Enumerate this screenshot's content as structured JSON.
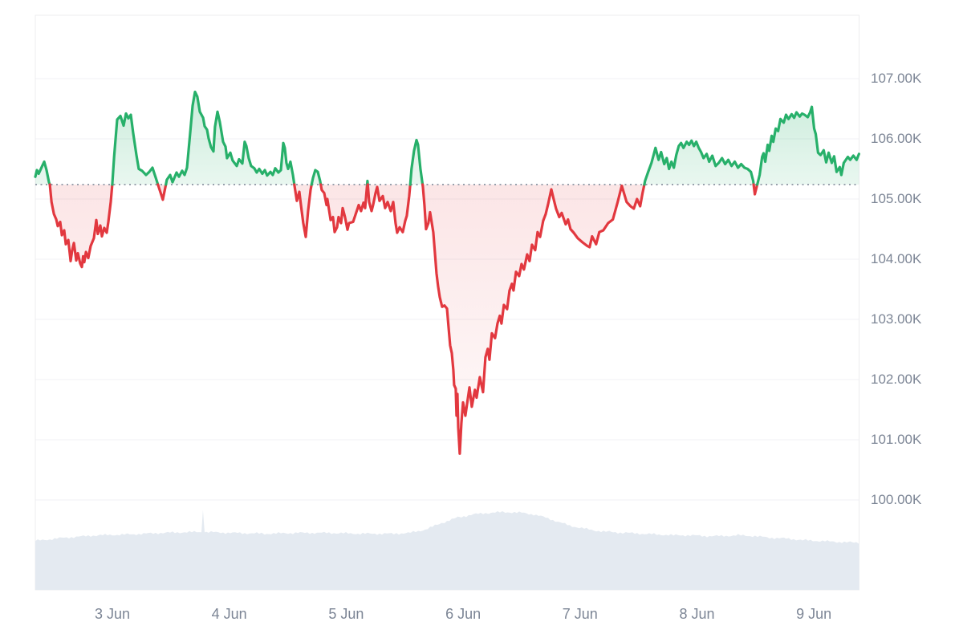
{
  "colors": {
    "up_line": "#27b06a",
    "down_line": "#e2383f",
    "volume_fill": "#e4eaf1",
    "grid_line": "#f0f1f4",
    "plot_border": "#ececef",
    "baseline_dots": "#98a0ac",
    "axis_text": "#7c8595",
    "background": "#ffffff"
  },
  "chart_data": {
    "type": "line",
    "description": "7-day cryptocurrency price line chart, green above previous-close baseline and red below, with volume area underneath",
    "x_unit": "day of June (fractional)",
    "y_unit": "price in thousands (K)",
    "baseline": 105.24,
    "ylim": [
      100,
      108.05
    ],
    "grid": "horizontal-only",
    "legend_position": "none",
    "y_ticks": [
      {
        "value": 107,
        "label": "107.00K"
      },
      {
        "value": 106,
        "label": "106.00K"
      },
      {
        "value": 105,
        "label": "105.00K"
      },
      {
        "value": 104,
        "label": "104.00K"
      },
      {
        "value": 103,
        "label": "103.00K"
      },
      {
        "value": 102,
        "label": "102.00K"
      },
      {
        "value": 101,
        "label": "101.00K"
      },
      {
        "value": 100,
        "label": "100.00K"
      }
    ],
    "x_ticks": [
      {
        "t": 3,
        "label": "3 Jun"
      },
      {
        "t": 4,
        "label": "4 Jun"
      },
      {
        "t": 5,
        "label": "5 Jun"
      },
      {
        "t": 6,
        "label": "6 Jun"
      },
      {
        "t": 7,
        "label": "7 Jun"
      },
      {
        "t": 8,
        "label": "8 Jun"
      },
      {
        "t": 9,
        "label": "9 Jun"
      }
    ],
    "price": [
      [
        2.341,
        105.37
      ],
      [
        2.355,
        105.48
      ],
      [
        2.37,
        105.42
      ],
      [
        2.4,
        105.55
      ],
      [
        2.417,
        105.62
      ],
      [
        2.437,
        105.48
      ],
      [
        2.458,
        105.28
      ],
      [
        2.465,
        105.24
      ],
      [
        2.48,
        104.95
      ],
      [
        2.5,
        104.75
      ],
      [
        2.52,
        104.66
      ],
      [
        2.533,
        104.55
      ],
      [
        2.554,
        104.62
      ],
      [
        2.568,
        104.4
      ],
      [
        2.588,
        104.48
      ],
      [
        2.602,
        104.25
      ],
      [
        2.623,
        104.32
      ],
      [
        2.643,
        103.97
      ],
      [
        2.657,
        104.15
      ],
      [
        2.671,
        104.27
      ],
      [
        2.691,
        103.98
      ],
      [
        2.705,
        104.1
      ],
      [
        2.725,
        103.93
      ],
      [
        2.739,
        103.87
      ],
      [
        2.75,
        104.05
      ],
      [
        2.76,
        103.95
      ],
      [
        2.774,
        104.12
      ],
      [
        2.794,
        104.02
      ],
      [
        2.815,
        104.22
      ],
      [
        2.842,
        104.35
      ],
      [
        2.863,
        104.65
      ],
      [
        2.876,
        104.42
      ],
      [
        2.897,
        104.56
      ],
      [
        2.911,
        104.38
      ],
      [
        2.931,
        104.52
      ],
      [
        2.952,
        104.44
      ],
      [
        2.966,
        104.62
      ],
      [
        2.986,
        104.95
      ],
      [
        3.0,
        105.26
      ],
      [
        3.015,
        105.7
      ],
      [
        3.041,
        106.32
      ],
      [
        3.069,
        106.38
      ],
      [
        3.096,
        106.22
      ],
      [
        3.117,
        106.42
      ],
      [
        3.137,
        106.34
      ],
      [
        3.158,
        106.4
      ],
      [
        3.178,
        106.1
      ],
      [
        3.206,
        105.73
      ],
      [
        3.226,
        105.5
      ],
      [
        3.254,
        105.47
      ],
      [
        3.288,
        105.4
      ],
      [
        3.316,
        105.45
      ],
      [
        3.343,
        105.52
      ],
      [
        3.377,
        105.32
      ],
      [
        3.405,
        105.15
      ],
      [
        3.432,
        104.99
      ],
      [
        3.466,
        105.32
      ],
      [
        3.494,
        105.4
      ],
      [
        3.515,
        105.28
      ],
      [
        3.549,
        105.44
      ],
      [
        3.57,
        105.37
      ],
      [
        3.597,
        105.47
      ],
      [
        3.618,
        105.4
      ],
      [
        3.638,
        105.52
      ],
      [
        3.666,
        106.1
      ],
      [
        3.686,
        106.55
      ],
      [
        3.707,
        106.78
      ],
      [
        3.727,
        106.7
      ],
      [
        3.748,
        106.45
      ],
      [
        3.776,
        106.35
      ],
      [
        3.789,
        106.21
      ],
      [
        3.81,
        106.15
      ],
      [
        3.823,
        106.01
      ],
      [
        3.844,
        105.86
      ],
      [
        3.865,
        105.79
      ],
      [
        3.878,
        106.2
      ],
      [
        3.899,
        106.45
      ],
      [
        3.919,
        106.28
      ],
      [
        3.933,
        106.12
      ],
      [
        3.947,
        105.95
      ],
      [
        3.968,
        105.87
      ],
      [
        3.981,
        105.68
      ],
      [
        4.009,
        105.77
      ],
      [
        4.029,
        105.64
      ],
      [
        4.064,
        105.55
      ],
      [
        4.084,
        105.66
      ],
      [
        4.112,
        105.59
      ],
      [
        4.132,
        105.95
      ],
      [
        4.146,
        105.88
      ],
      [
        4.166,
        105.68
      ],
      [
        4.187,
        105.55
      ],
      [
        4.214,
        105.51
      ],
      [
        4.235,
        105.44
      ],
      [
        4.256,
        105.5
      ],
      [
        4.283,
        105.42
      ],
      [
        4.304,
        105.48
      ],
      [
        4.324,
        105.39
      ],
      [
        4.352,
        105.45
      ],
      [
        4.372,
        105.4
      ],
      [
        4.393,
        105.51
      ],
      [
        4.42,
        105.44
      ],
      [
        4.441,
        105.48
      ],
      [
        4.462,
        105.93
      ],
      [
        4.475,
        105.85
      ],
      [
        4.489,
        105.6
      ],
      [
        4.503,
        105.5
      ],
      [
        4.523,
        105.62
      ],
      [
        4.544,
        105.4
      ],
      [
        4.558,
        105.22
      ],
      [
        4.578,
        104.97
      ],
      [
        4.599,
        105.12
      ],
      [
        4.613,
        104.9
      ],
      [
        4.633,
        104.6
      ],
      [
        4.654,
        104.37
      ],
      [
        4.674,
        104.8
      ],
      [
        4.695,
        105.15
      ],
      [
        4.716,
        105.35
      ],
      [
        4.736,
        105.48
      ],
      [
        4.757,
        105.45
      ],
      [
        4.777,
        105.3
      ],
      [
        4.791,
        105.15
      ],
      [
        4.812,
        105.1
      ],
      [
        4.832,
        104.9
      ],
      [
        4.839,
        105.0
      ],
      [
        4.867,
        104.65
      ],
      [
        4.887,
        104.7
      ],
      [
        4.901,
        104.45
      ],
      [
        4.922,
        104.53
      ],
      [
        4.935,
        104.7
      ],
      [
        4.956,
        104.6
      ],
      [
        4.97,
        104.85
      ],
      [
        4.99,
        104.7
      ],
      [
        5.011,
        104.49
      ],
      [
        5.024,
        104.6
      ],
      [
        5.059,
        104.62
      ],
      [
        5.107,
        104.9
      ],
      [
        5.127,
        104.8
      ],
      [
        5.148,
        104.94
      ],
      [
        5.162,
        104.85
      ],
      [
        5.182,
        105.3
      ],
      [
        5.196,
        104.95
      ],
      [
        5.217,
        104.8
      ],
      [
        5.23,
        104.9
      ],
      [
        5.251,
        105.1
      ],
      [
        5.265,
        105.2
      ],
      [
        5.285,
        104.97
      ],
      [
        5.313,
        105.05
      ],
      [
        5.333,
        104.85
      ],
      [
        5.354,
        104.95
      ],
      [
        5.381,
        104.8
      ],
      [
        5.402,
        104.95
      ],
      [
        5.422,
        104.6
      ],
      [
        5.436,
        104.44
      ],
      [
        5.457,
        104.53
      ],
      [
        5.484,
        104.45
      ],
      [
        5.505,
        104.64
      ],
      [
        5.518,
        104.72
      ],
      [
        5.539,
        105.05
      ],
      [
        5.559,
        105.5
      ],
      [
        5.58,
        105.8
      ],
      [
        5.601,
        105.98
      ],
      [
        5.614,
        105.9
      ],
      [
        5.635,
        105.5
      ],
      [
        5.656,
        105.2
      ],
      [
        5.669,
        104.9
      ],
      [
        5.683,
        104.5
      ],
      [
        5.703,
        104.6
      ],
      [
        5.717,
        104.78
      ],
      [
        5.745,
        104.45
      ],
      [
        5.758,
        104.13
      ],
      [
        5.772,
        103.77
      ],
      [
        5.786,
        103.55
      ],
      [
        5.8,
        103.37
      ],
      [
        5.82,
        103.21
      ],
      [
        5.841,
        103.23
      ],
      [
        5.862,
        103.18
      ],
      [
        5.875,
        102.88
      ],
      [
        5.889,
        102.57
      ],
      [
        5.903,
        102.44
      ],
      [
        5.916,
        102.16
      ],
      [
        5.923,
        101.91
      ],
      [
        5.937,
        101.85
      ],
      [
        5.944,
        101.4
      ],
      [
        5.951,
        101.76
      ],
      [
        5.958,
        101.21
      ],
      [
        5.971,
        100.77
      ],
      [
        5.985,
        101.27
      ],
      [
        5.999,
        101.62
      ],
      [
        6.019,
        101.4
      ],
      [
        6.054,
        101.87
      ],
      [
        6.074,
        101.55
      ],
      [
        6.101,
        101.83
      ],
      [
        6.115,
        101.7
      ],
      [
        6.143,
        102.04
      ],
      [
        6.17,
        101.79
      ],
      [
        6.191,
        102.37
      ],
      [
        6.211,
        102.51
      ],
      [
        6.225,
        102.33
      ],
      [
        6.246,
        102.77
      ],
      [
        6.273,
        102.69
      ],
      [
        6.294,
        102.93
      ],
      [
        6.314,
        103.06
      ],
      [
        6.328,
        102.93
      ],
      [
        6.349,
        103.24
      ],
      [
        6.376,
        103.17
      ],
      [
        6.397,
        103.48
      ],
      [
        6.417,
        103.59
      ],
      [
        6.431,
        103.48
      ],
      [
        6.452,
        103.79
      ],
      [
        6.479,
        103.72
      ],
      [
        6.5,
        103.92
      ],
      [
        6.52,
        103.83
      ],
      [
        6.548,
        104.08
      ],
      [
        6.568,
        103.97
      ],
      [
        6.589,
        104.24
      ],
      [
        6.616,
        104.15
      ],
      [
        6.637,
        104.45
      ],
      [
        6.658,
        104.37
      ],
      [
        6.685,
        104.64
      ],
      [
        6.706,
        104.75
      ],
      [
        6.726,
        104.91
      ],
      [
        6.754,
        105.16
      ],
      [
        6.774,
        105.0
      ],
      [
        6.795,
        104.84
      ],
      [
        6.822,
        104.7
      ],
      [
        6.843,
        104.77
      ],
      [
        6.877,
        104.58
      ],
      [
        6.897,
        104.66
      ],
      [
        6.918,
        104.5
      ],
      [
        6.946,
        104.44
      ],
      [
        6.98,
        104.35
      ],
      [
        7.021,
        104.28
      ],
      [
        7.062,
        104.22
      ],
      [
        7.082,
        104.2
      ],
      [
        7.103,
        104.38
      ],
      [
        7.137,
        104.25
      ],
      [
        7.165,
        104.45
      ],
      [
        7.199,
        104.48
      ],
      [
        7.24,
        104.6
      ],
      [
        7.281,
        104.66
      ],
      [
        7.322,
        104.95
      ],
      [
        7.357,
        105.22
      ],
      [
        7.398,
        104.95
      ],
      [
        7.432,
        104.88
      ],
      [
        7.46,
        104.84
      ],
      [
        7.487,
        105.0
      ],
      [
        7.514,
        104.88
      ],
      [
        7.535,
        105.1
      ],
      [
        7.556,
        105.3
      ],
      [
        7.583,
        105.45
      ],
      [
        7.611,
        105.6
      ],
      [
        7.645,
        105.85
      ],
      [
        7.672,
        105.65
      ],
      [
        7.693,
        105.78
      ],
      [
        7.72,
        105.58
      ],
      [
        7.741,
        105.68
      ],
      [
        7.761,
        105.5
      ],
      [
        7.782,
        105.62
      ],
      [
        7.802,
        105.52
      ],
      [
        7.823,
        105.73
      ],
      [
        7.844,
        105.88
      ],
      [
        7.864,
        105.93
      ],
      [
        7.885,
        105.85
      ],
      [
        7.912,
        105.95
      ],
      [
        7.933,
        105.9
      ],
      [
        7.953,
        105.97
      ],
      [
        7.974,
        105.88
      ],
      [
        7.994,
        105.95
      ],
      [
        8.015,
        105.85
      ],
      [
        8.035,
        105.78
      ],
      [
        8.056,
        105.68
      ],
      [
        8.083,
        105.75
      ],
      [
        8.104,
        105.62
      ],
      [
        8.131,
        105.72
      ],
      [
        8.159,
        105.55
      ],
      [
        8.186,
        105.6
      ],
      [
        8.214,
        105.68
      ],
      [
        8.241,
        105.58
      ],
      [
        8.268,
        105.65
      ],
      [
        8.296,
        105.55
      ],
      [
        8.323,
        105.62
      ],
      [
        8.351,
        105.52
      ],
      [
        8.378,
        105.58
      ],
      [
        8.406,
        105.52
      ],
      [
        8.433,
        105.5
      ],
      [
        8.461,
        105.45
      ],
      [
        8.481,
        105.3
      ],
      [
        8.495,
        105.08
      ],
      [
        8.536,
        105.4
      ],
      [
        8.557,
        105.7
      ],
      [
        8.57,
        105.76
      ],
      [
        8.584,
        105.62
      ],
      [
        8.605,
        105.9
      ],
      [
        8.618,
        105.8
      ],
      [
        8.639,
        106.05
      ],
      [
        8.653,
        105.95
      ],
      [
        8.673,
        106.17
      ],
      [
        8.694,
        106.13
      ],
      [
        8.714,
        106.33
      ],
      [
        8.742,
        106.27
      ],
      [
        8.762,
        106.4
      ],
      [
        8.783,
        106.33
      ],
      [
        8.81,
        106.41
      ],
      [
        8.831,
        106.35
      ],
      [
        8.851,
        106.44
      ],
      [
        8.879,
        106.37
      ],
      [
        8.899,
        106.42
      ],
      [
        8.92,
        106.4
      ],
      [
        8.947,
        106.36
      ],
      [
        8.968,
        106.44
      ],
      [
        8.982,
        106.53
      ],
      [
        9.002,
        106.17
      ],
      [
        9.016,
        106.08
      ],
      [
        9.036,
        105.77
      ],
      [
        9.057,
        105.73
      ],
      [
        9.084,
        105.81
      ],
      [
        9.105,
        105.61
      ],
      [
        9.126,
        105.77
      ],
      [
        9.153,
        105.6
      ],
      [
        9.173,
        105.71
      ],
      [
        9.194,
        105.45
      ],
      [
        9.221,
        105.53
      ],
      [
        9.235,
        105.4
      ],
      [
        9.255,
        105.6
      ],
      [
        9.29,
        105.7
      ],
      [
        9.31,
        105.65
      ],
      [
        9.338,
        105.72
      ],
      [
        9.365,
        105.65
      ],
      [
        9.386,
        105.75
      ]
    ],
    "volume_relative": [
      [
        2.341,
        0.555
      ],
      [
        2.588,
        0.59
      ],
      [
        2.863,
        0.618
      ],
      [
        3.137,
        0.627
      ],
      [
        3.412,
        0.645
      ],
      [
        3.686,
        0.655
      ],
      [
        3.762,
        0.655
      ],
      [
        3.775,
        0.918
      ],
      [
        3.789,
        0.655
      ],
      [
        4.029,
        0.645
      ],
      [
        4.304,
        0.636
      ],
      [
        4.578,
        0.645
      ],
      [
        4.853,
        0.645
      ],
      [
        5.127,
        0.636
      ],
      [
        5.402,
        0.636
      ],
      [
        5.539,
        0.645
      ],
      [
        5.676,
        0.682
      ],
      [
        5.813,
        0.755
      ],
      [
        5.951,
        0.818
      ],
      [
        6.088,
        0.855
      ],
      [
        6.225,
        0.873
      ],
      [
        6.362,
        0.882
      ],
      [
        6.5,
        0.873
      ],
      [
        6.603,
        0.855
      ],
      [
        6.706,
        0.818
      ],
      [
        6.808,
        0.773
      ],
      [
        6.911,
        0.727
      ],
      [
        7.014,
        0.7
      ],
      [
        7.117,
        0.673
      ],
      [
        7.254,
        0.655
      ],
      [
        7.391,
        0.645
      ],
      [
        7.528,
        0.636
      ],
      [
        7.665,
        0.627
      ],
      [
        7.802,
        0.618
      ],
      [
        7.939,
        0.618
      ],
      [
        8.076,
        0.609
      ],
      [
        8.214,
        0.609
      ],
      [
        8.351,
        0.618
      ],
      [
        8.488,
        0.609
      ],
      [
        8.625,
        0.59
      ],
      [
        8.762,
        0.582
      ],
      [
        8.899,
        0.564
      ],
      [
        9.036,
        0.555
      ],
      [
        9.173,
        0.545
      ],
      [
        9.31,
        0.536
      ],
      [
        9.386,
        0.536
      ]
    ]
  }
}
